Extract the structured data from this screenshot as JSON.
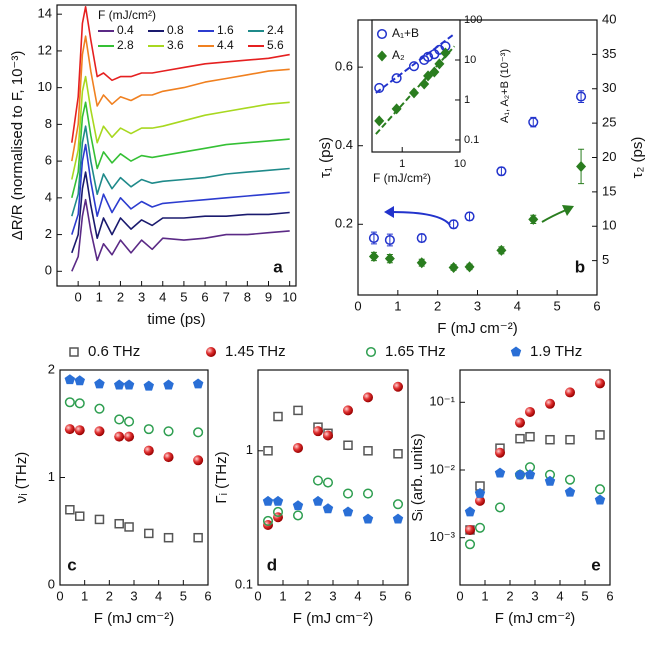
{
  "chart_data": [
    {
      "type": "line",
      "label": "a",
      "xlabel": "time (ps)",
      "ylabel": "ΔR/R (normalised to F, 10⁻³)",
      "legend_title": "F (mJ/cm²)",
      "x": [
        -0.3,
        0,
        0.2,
        0.35,
        0.6,
        0.9,
        1.2,
        1.6,
        2,
        2.5,
        3,
        3.5,
        4,
        5,
        6,
        7,
        8,
        9,
        10
      ],
      "xlim": [
        -1,
        10.3
      ],
      "xticks": [
        0,
        1,
        2,
        3,
        4,
        5,
        6,
        7,
        8,
        9,
        10
      ],
      "ylim": [
        -0.8,
        14.5
      ],
      "yticks": [
        0,
        2,
        4,
        6,
        8,
        10,
        12,
        14
      ],
      "series": [
        {
          "name": "0.4",
          "color": "#5b2a86",
          "values": [
            0,
            0.8,
            3.0,
            3.9,
            2.2,
            0.6,
            1.5,
            0.9,
            1.7,
            1.0,
            1.7,
            1.2,
            1.8,
            1.7,
            1.8,
            2.0,
            2.0,
            2.1,
            2.2
          ]
        },
        {
          "name": "0.8",
          "color": "#1a1a6e",
          "values": [
            1.0,
            2.0,
            4.5,
            5.4,
            3.6,
            1.8,
            2.9,
            2.0,
            2.9,
            2.3,
            2.8,
            2.5,
            2.9,
            2.9,
            3.0,
            3.0,
            3.1,
            3.1,
            3.2
          ]
        },
        {
          "name": "1.6",
          "color": "#2c3ccf",
          "values": [
            2.0,
            3.1,
            6.0,
            6.9,
            4.9,
            3.0,
            4.2,
            3.2,
            4.0,
            3.4,
            3.8,
            3.5,
            3.7,
            3.8,
            3.9,
            4.0,
            4.1,
            4.2,
            4.3
          ]
        },
        {
          "name": "2.4",
          "color": "#1f8a8a",
          "values": [
            3.0,
            4.2,
            7.0,
            7.9,
            6.0,
            4.2,
            5.3,
            4.5,
            5.1,
            4.6,
            5.0,
            4.8,
            4.9,
            5.0,
            5.1,
            5.3,
            5.4,
            5.5,
            5.6
          ]
        },
        {
          "name": "2.8",
          "color": "#35c035",
          "values": [
            4.0,
            5.4,
            8.4,
            9.2,
            7.4,
            5.6,
            6.5,
            5.9,
            6.4,
            6.0,
            6.3,
            6.2,
            6.3,
            6.5,
            6.7,
            6.9,
            7.0,
            7.1,
            7.2
          ]
        },
        {
          "name": "3.6",
          "color": "#a8d820",
          "values": [
            5.0,
            6.6,
            9.8,
            10.6,
            8.8,
            7.0,
            7.9,
            7.3,
            7.8,
            7.5,
            7.8,
            7.8,
            7.9,
            8.2,
            8.5,
            8.7,
            8.9,
            9.1,
            9.2
          ]
        },
        {
          "name": "4.4",
          "color": "#f08020",
          "values": [
            6.0,
            8.0,
            11.8,
            12.8,
            10.9,
            9.0,
            9.6,
            9.1,
            9.5,
            9.3,
            9.6,
            9.6,
            9.8,
            10.0,
            10.3,
            10.5,
            10.7,
            10.9,
            11.0
          ]
        },
        {
          "name": "5.6",
          "color": "#e52020",
          "values": [
            7.0,
            9.5,
            13.5,
            14.4,
            12.6,
            10.6,
            10.8,
            10.4,
            10.6,
            10.6,
            10.8,
            10.8,
            10.9,
            11.1,
            11.3,
            11.4,
            11.5,
            11.6,
            11.8
          ]
        }
      ]
    },
    {
      "type": "scatter",
      "label": "b",
      "xlabel": "F (mJ cm⁻²)",
      "ylabel": "τ₁ (ps)",
      "y2label": "τ₂ (ps)",
      "x": [
        0.4,
        0.8,
        1.6,
        2.4,
        2.8,
        3.6,
        4.4,
        5.6
      ],
      "xlim": [
        0,
        6
      ],
      "xticks": [
        0,
        1,
        2,
        3,
        4,
        5,
        6
      ],
      "ylim": [
        0.02,
        0.72
      ],
      "yticks": [
        0.2,
        0.4,
        0.6
      ],
      "y2lim": [
        0,
        40
      ],
      "y2ticks": [
        5,
        10,
        15,
        20,
        25,
        30,
        35,
        40
      ],
      "series": [
        {
          "color": "#2233cc",
          "marker": "circle-open",
          "values": [
            0.165,
            0.16,
            0.165,
            0.2,
            0.22,
            0.335,
            0.46,
            0.525
          ],
          "errors": [
            0.015,
            0.015,
            0.01,
            0.01,
            0.01,
            0.01,
            0.012,
            0.015
          ]
        },
        {
          "color": "#2a7d1f",
          "marker": "diamond",
          "axis": "y2",
          "values": [
            5.6,
            5.3,
            4.7,
            4.0,
            4.1,
            6.5,
            11,
            18.7
          ],
          "errors": [
            0.6,
            0.6,
            0.5,
            0.4,
            0.4,
            0.5,
            0.6,
            2.5
          ]
        }
      ]
    },
    {
      "type": "scatter",
      "label": "c",
      "xlabel": "F (mJ cm⁻²)",
      "ylabel": "νᵢ (THz)",
      "x": [
        0.4,
        0.8,
        1.6,
        2.4,
        2.8,
        3.6,
        4.4,
        5.6
      ],
      "xlim": [
        0,
        6
      ],
      "xticks": [
        0,
        1,
        2,
        3,
        4,
        5,
        6
      ],
      "ylim": [
        0,
        2
      ],
      "yticks": [
        0,
        1,
        2
      ],
      "series": [
        {
          "values": [
            0.7,
            0.64,
            0.61,
            0.57,
            0.54,
            0.48,
            0.44,
            0.44
          ]
        },
        {
          "values": [
            1.45,
            1.44,
            1.43,
            1.38,
            1.38,
            1.25,
            1.19,
            1.16
          ]
        },
        {
          "values": [
            1.7,
            1.69,
            1.64,
            1.54,
            1.52,
            1.45,
            1.43,
            1.42
          ]
        },
        {
          "values": [
            1.91,
            1.9,
            1.87,
            1.86,
            1.86,
            1.85,
            1.86,
            1.87
          ]
        }
      ]
    },
    {
      "type": "scatter",
      "label": "d",
      "xlabel": "F (mJ cm⁻²)",
      "ylabel": "Γᵢ (THz)",
      "ylog": true,
      "x": [
        0.4,
        0.8,
        1.6,
        2.4,
        2.8,
        3.6,
        4.4,
        5.6
      ],
      "xlim": [
        0,
        6
      ],
      "xticks": [
        0,
        1,
        2,
        3,
        4,
        5,
        6
      ],
      "ylim": [
        0.1,
        4
      ],
      "yticks": [
        0.1,
        1
      ],
      "series": [
        {
          "values": [
            1.0,
            1.8,
            2.0,
            1.5,
            1.35,
            1.1,
            1.0,
            0.95
          ]
        },
        {
          "values": [
            0.28,
            0.32,
            1.05,
            1.4,
            1.3,
            2.0,
            2.5,
            3.0
          ]
        },
        {
          "values": [
            0.3,
            0.35,
            0.33,
            0.6,
            0.58,
            0.48,
            0.48,
            0.4
          ]
        },
        {
          "values": [
            0.42,
            0.42,
            0.39,
            0.42,
            0.37,
            0.35,
            0.31,
            0.31
          ]
        }
      ]
    },
    {
      "type": "scatter",
      "label": "e",
      "xlabel": "F (mJ cm⁻²)",
      "ylabel": "Sᵢ (arb. units)",
      "ylog": true,
      "x": [
        0.4,
        0.8,
        1.6,
        2.4,
        2.8,
        3.6,
        4.4,
        5.6
      ],
      "xlim": [
        0,
        6
      ],
      "xticks": [
        0,
        1,
        2,
        3,
        4,
        5,
        6
      ],
      "ylim": [
        0.0002,
        0.3
      ],
      "yticks": [
        {
          "value": 0.001,
          "label": "10⁻³"
        },
        {
          "value": 0.01,
          "label": "10⁻²"
        },
        {
          "value": 0.1,
          "label": "10⁻¹"
        }
      ],
      "series": [
        {
          "values": [
            0.0013,
            0.0058,
            0.021,
            0.029,
            0.031,
            0.028,
            0.028,
            0.033
          ]
        },
        {
          "values": [
            0.0013,
            0.0035,
            0.018,
            0.05,
            0.072,
            0.095,
            0.14,
            0.19
          ]
        },
        {
          "values": [
            0.0008,
            0.0014,
            0.0028,
            0.0085,
            0.011,
            0.0085,
            0.0072,
            0.0052
          ]
        },
        {
          "values": [
            0.0024,
            0.0045,
            0.009,
            0.0085,
            0.0085,
            0.0068,
            0.0047,
            0.0036
          ]
        }
      ]
    },
    {
      "type": "scatter",
      "xlabel": "F (mJ/cm²)",
      "ylabel": "A₁, A₂+B (10⁻³)",
      "xlog": true,
      "ylog": true,
      "x": [
        0.4,
        0.8,
        1.6,
        2.4,
        2.8,
        3.6,
        4.4,
        5.6
      ],
      "xlim": [
        0.3,
        10
      ],
      "xticks": [
        1,
        10
      ],
      "ylim": [
        0.05,
        100
      ],
      "yticks": [
        0.1,
        1,
        10,
        100
      ],
      "series": [
        {
          "name": "A₁+B",
          "color": "#2233cc",
          "marker": "circle-open",
          "values": [
            2,
            3.5,
            7,
            10,
            12,
            14,
            18,
            22
          ],
          "fit": {
            "x": [
              0.35,
              8
            ],
            "values": [
              1.5,
              45
            ]
          }
        },
        {
          "name": "A₂",
          "color": "#2a7d1f",
          "marker": "diamond",
          "values": [
            0.3,
            0.6,
            1.5,
            2.5,
            4,
            5,
            8,
            15
          ],
          "fit": {
            "x": [
              0.35,
              8
            ],
            "values": [
              0.14,
              22
            ]
          }
        }
      ]
    }
  ],
  "shared_legend": [
    {
      "name": "0.6 THz",
      "color": "#555555",
      "marker": "square-open"
    },
    {
      "name": "1.45 THz",
      "color": "#e03030",
      "marker": "sphere"
    },
    {
      "name": "1.65 THz",
      "color": "#2e9e50",
      "marker": "circle-open"
    },
    {
      "name": "1.9 THz",
      "color": "#2a6fd6",
      "marker": "pentagon"
    }
  ]
}
